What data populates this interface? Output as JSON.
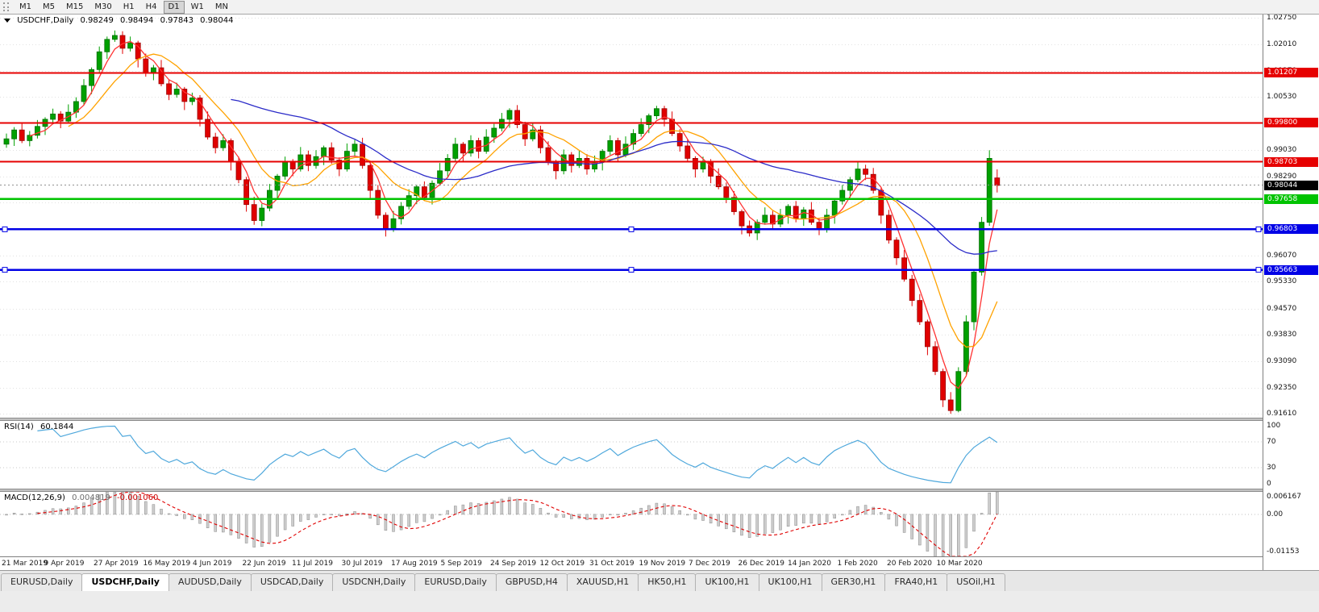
{
  "toolbar": {
    "timeframes": [
      {
        "label": "M1",
        "active": false
      },
      {
        "label": "M5",
        "active": false
      },
      {
        "label": "M15",
        "active": false
      },
      {
        "label": "M30",
        "active": false
      },
      {
        "label": "H1",
        "active": false
      },
      {
        "label": "H4",
        "active": false
      },
      {
        "label": "D1",
        "active": true
      },
      {
        "label": "W1",
        "active": false
      },
      {
        "label": "MN",
        "active": false
      }
    ]
  },
  "chart_header": {
    "symbol": "USDCHF,Daily",
    "open": "0.98249",
    "high": "0.98494",
    "low": "0.97843",
    "close": "0.98044"
  },
  "price_axis": {
    "labels": [
      "1.02750",
      "1.02010",
      "1.01270",
      "1.00530",
      "0.99800",
      "0.99030",
      "0.98290",
      "0.97550",
      "0.96810",
      "0.96070",
      "0.95330",
      "0.94570",
      "0.93830",
      "0.93090",
      "0.92350",
      "0.91610"
    ]
  },
  "hlines": [
    {
      "label": "1.01207",
      "price": 1.01207,
      "color": "#e60000",
      "width": 2,
      "selected": false
    },
    {
      "label": "0.99800",
      "price": 0.998,
      "color": "#e60000",
      "width": 2,
      "selected": false
    },
    {
      "label": "0.98703",
      "price": 0.98703,
      "color": "#e60000",
      "width": 2,
      "selected": false
    },
    {
      "label": "0.97658",
      "price": 0.97658,
      "color": "#00c300",
      "width": 2.5,
      "selected": false
    },
    {
      "label": "0.96803",
      "price": 0.96803,
      "color": "#0000e6",
      "width": 2.5,
      "selected": true
    },
    {
      "label": "0.95663",
      "price": 0.95663,
      "color": "#0000e6",
      "width": 2.5,
      "selected": true
    }
  ],
  "current_price": {
    "label": "0.98044",
    "value": 0.98044,
    "badge_color": "#000000"
  },
  "colors": {
    "up_body": "#00a000",
    "up_border": "#006e00",
    "down_body": "#e00000",
    "down_border": "#9c0000",
    "grid": "#e2e2e2",
    "macd_hist": "#cdcdcd",
    "macd_hist_border": "#8c8c8c",
    "macd_signal": "#e00000"
  },
  "chart_data": {
    "type": "candlestick",
    "symbol": "USDCHF",
    "timeframe": "Daily",
    "title": "USDCHF,Daily",
    "price_range": {
      "min": 0.915,
      "max": 1.0285
    },
    "x_labels": [
      "21 Mar 2019",
      "9 Apr 2019",
      "27 Apr 2019",
      "16 May 2019",
      "4 Jun 2019",
      "22 Jun 2019",
      "11 Jul 2019",
      "30 Jul 2019",
      "17 Aug 2019",
      "5 Sep 2019",
      "24 Sep 2019",
      "12 Oct 2019",
      "31 Oct 2019",
      "19 Nov 2019",
      "7 Dec 2019",
      "26 Dec 2019",
      "14 Jan 2020",
      "1 Feb 2020",
      "20 Feb 2020",
      "10 Mar 2020"
    ],
    "moving_averages": [
      {
        "period": 4,
        "color": "#ff3232",
        "name": "ma-fast-red"
      },
      {
        "period": 9,
        "color": "#ffa200",
        "name": "ma-mid-orange"
      },
      {
        "period": 30,
        "color": "#2b2bc8",
        "name": "ma-slow-blue"
      }
    ],
    "candles": [
      [
        0.992,
        0.995,
        0.991,
        0.9935
      ],
      [
        0.9935,
        0.9968,
        0.9915,
        0.996
      ],
      [
        0.996,
        0.9982,
        0.9923,
        0.993
      ],
      [
        0.993,
        0.9957,
        0.9914,
        0.9945
      ],
      [
        0.9945,
        0.9988,
        0.9936,
        0.997
      ],
      [
        0.997,
        0.9996,
        0.9946,
        0.999
      ],
      [
        0.999,
        1.002,
        0.998,
        1.0005
      ],
      [
        1.0005,
        1.0013,
        0.9965,
        0.9985
      ],
      [
        0.9985,
        1.0032,
        0.9978,
        1.001
      ],
      [
        1.001,
        1.0052,
        0.9994,
        1.004
      ],
      [
        1.004,
        1.0103,
        1.0031,
        1.0085
      ],
      [
        1.0085,
        1.0136,
        1.0061,
        1.013
      ],
      [
        1.013,
        1.0195,
        1.012,
        1.018
      ],
      [
        1.018,
        1.0223,
        1.016,
        1.0215
      ],
      [
        1.0215,
        1.024,
        1.0208,
        1.0226
      ],
      [
        1.0226,
        1.0238,
        1.0174,
        1.019
      ],
      [
        1.019,
        1.0223,
        1.0181,
        1.0205
      ],
      [
        1.0205,
        1.0211,
        1.0136,
        1.016
      ],
      [
        1.016,
        1.0175,
        1.011,
        1.012
      ],
      [
        1.012,
        1.0143,
        1.01,
        1.0135
      ],
      [
        1.0135,
        1.0157,
        1.0083,
        1.009
      ],
      [
        1.009,
        1.0102,
        1.0044,
        1.006
      ],
      [
        1.006,
        1.0093,
        1.0051,
        1.0075
      ],
      [
        1.0075,
        1.0081,
        1.0016,
        1.004
      ],
      [
        1.004,
        1.0065,
        1.003,
        1.005
      ],
      [
        1.005,
        1.0058,
        0.997,
        0.999
      ],
      [
        0.999,
        1.0012,
        0.9933,
        0.994
      ],
      [
        0.994,
        0.9952,
        0.9894,
        0.991
      ],
      [
        0.991,
        0.9948,
        0.9901,
        0.993
      ],
      [
        0.993,
        0.9936,
        0.9846,
        0.987
      ],
      [
        0.987,
        0.9885,
        0.981,
        0.982
      ],
      [
        0.982,
        0.9828,
        0.973,
        0.975
      ],
      [
        0.975,
        0.9772,
        0.9693,
        0.9705
      ],
      [
        0.9705,
        0.9752,
        0.9689,
        0.974
      ],
      [
        0.974,
        0.9808,
        0.9731,
        0.979
      ],
      [
        0.979,
        0.9836,
        0.9766,
        0.983
      ],
      [
        0.983,
        0.9885,
        0.982,
        0.987
      ],
      [
        0.987,
        0.9878,
        0.983,
        0.985
      ],
      [
        0.985,
        0.9912,
        0.9843,
        0.989
      ],
      [
        0.989,
        0.9902,
        0.9844,
        0.986
      ],
      [
        0.986,
        0.9903,
        0.9851,
        0.9885
      ],
      [
        0.9885,
        0.9916,
        0.9861,
        0.991
      ],
      [
        0.991,
        0.9925,
        0.9865,
        0.9875
      ],
      [
        0.9875,
        0.9883,
        0.983,
        0.985
      ],
      [
        0.985,
        0.9922,
        0.9843,
        0.99
      ],
      [
        0.99,
        0.9932,
        0.9884,
        0.992
      ],
      [
        0.992,
        0.9938,
        0.9851,
        0.986
      ],
      [
        0.986,
        0.9866,
        0.9766,
        0.979
      ],
      [
        0.979,
        0.9805,
        0.971,
        0.972
      ],
      [
        0.972,
        0.9728,
        0.966,
        0.968
      ],
      [
        0.968,
        0.9732,
        0.9673,
        0.971
      ],
      [
        0.971,
        0.9757,
        0.9694,
        0.9745
      ],
      [
        0.9745,
        0.9793,
        0.9736,
        0.9775
      ],
      [
        0.9775,
        0.9806,
        0.9751,
        0.98
      ],
      [
        0.98,
        0.9815,
        0.976,
        0.977
      ],
      [
        0.977,
        0.9818,
        0.975,
        0.981
      ],
      [
        0.981,
        0.9867,
        0.9803,
        0.9845
      ],
      [
        0.9845,
        0.9892,
        0.9829,
        0.988
      ],
      [
        0.988,
        0.9938,
        0.9871,
        0.992
      ],
      [
        0.992,
        0.9926,
        0.9871,
        0.9895
      ],
      [
        0.9895,
        0.9945,
        0.9885,
        0.993
      ],
      [
        0.993,
        0.9938,
        0.988,
        0.99
      ],
      [
        0.99,
        0.9962,
        0.9893,
        0.994
      ],
      [
        0.994,
        0.9977,
        0.9924,
        0.9965
      ],
      [
        0.9965,
        1.0008,
        0.9956,
        0.999
      ],
      [
        0.999,
        1.0021,
        0.9966,
        1.0015
      ],
      [
        1.0015,
        1.003,
        0.9965,
        0.9975
      ],
      [
        0.9975,
        0.9983,
        0.9915,
        0.9935
      ],
      [
        0.9935,
        0.9982,
        0.9928,
        0.996
      ],
      [
        0.996,
        0.9972,
        0.9894,
        0.991
      ],
      [
        0.991,
        0.9928,
        0.9861,
        0.987
      ],
      [
        0.987,
        0.9876,
        0.9821,
        0.9845
      ],
      [
        0.9845,
        0.9905,
        0.9835,
        0.989
      ],
      [
        0.989,
        0.9898,
        0.984,
        0.986
      ],
      [
        0.986,
        0.9902,
        0.9853,
        0.988
      ],
      [
        0.988,
        0.9892,
        0.9834,
        0.985
      ],
      [
        0.985,
        0.9888,
        0.9841,
        0.987
      ],
      [
        0.987,
        0.9906,
        0.9846,
        0.99
      ],
      [
        0.99,
        0.9945,
        0.989,
        0.993
      ],
      [
        0.993,
        0.9938,
        0.987,
        0.989
      ],
      [
        0.989,
        0.9942,
        0.9883,
        0.992
      ],
      [
        0.992,
        0.9962,
        0.9904,
        0.995
      ],
      [
        0.995,
        0.9993,
        0.9941,
        0.9975
      ],
      [
        0.9975,
        1.0006,
        0.9951,
        1.0
      ],
      [
        1.0,
        1.0028,
        0.999,
        1.002
      ],
      [
        1.002,
        1.0028,
        0.997,
        0.999
      ],
      [
        0.999,
        1.0012,
        0.9943,
        0.995
      ],
      [
        0.995,
        0.9962,
        0.9899,
        0.9915
      ],
      [
        0.9915,
        0.9933,
        0.9871,
        0.988
      ],
      [
        0.988,
        0.9886,
        0.9826,
        0.985
      ],
      [
        0.985,
        0.9885,
        0.984,
        0.987
      ],
      [
        0.987,
        0.9878,
        0.981,
        0.983
      ],
      [
        0.983,
        0.9852,
        0.9793,
        0.98
      ],
      [
        0.98,
        0.9812,
        0.9754,
        0.977
      ],
      [
        0.977,
        0.9788,
        0.9721,
        0.973
      ],
      [
        0.973,
        0.9736,
        0.9666,
        0.969
      ],
      [
        0.969,
        0.9705,
        0.966,
        0.967
      ],
      [
        0.967,
        0.9708,
        0.965,
        0.97
      ],
      [
        0.97,
        0.9742,
        0.9693,
        0.972
      ],
      [
        0.972,
        0.9732,
        0.9679,
        0.9695
      ],
      [
        0.9695,
        0.9738,
        0.9686,
        0.972
      ],
      [
        0.972,
        0.9751,
        0.9696,
        0.9745
      ],
      [
        0.9745,
        0.976,
        0.97,
        0.971
      ],
      [
        0.971,
        0.9743,
        0.969,
        0.9735
      ],
      [
        0.9735,
        0.9757,
        0.9693,
        0.97
      ],
      [
        0.97,
        0.9712,
        0.9664,
        0.968
      ],
      [
        0.968,
        0.9738,
        0.9671,
        0.972
      ],
      [
        0.972,
        0.9766,
        0.9696,
        0.976
      ],
      [
        0.976,
        0.9805,
        0.975,
        0.979
      ],
      [
        0.979,
        0.9828,
        0.977,
        0.982
      ],
      [
        0.982,
        0.9872,
        0.9813,
        0.985
      ],
      [
        0.985,
        0.9862,
        0.9819,
        0.9835
      ],
      [
        0.9835,
        0.9853,
        0.9781,
        0.979
      ],
      [
        0.979,
        0.9796,
        0.9696,
        0.972
      ],
      [
        0.972,
        0.9735,
        0.964,
        0.965
      ],
      [
        0.965,
        0.9658,
        0.958,
        0.96
      ],
      [
        0.96,
        0.9622,
        0.9533,
        0.954
      ],
      [
        0.954,
        0.9552,
        0.9464,
        0.948
      ],
      [
        0.948,
        0.9498,
        0.9411,
        0.942
      ],
      [
        0.942,
        0.9426,
        0.9326,
        0.935
      ],
      [
        0.935,
        0.9365,
        0.927,
        0.928
      ],
      [
        0.928,
        0.9288,
        0.918,
        0.92
      ],
      [
        0.92,
        0.9222,
        0.9161,
        0.917
      ],
      [
        0.917,
        0.9292,
        0.9165,
        0.928
      ],
      [
        0.928,
        0.9438,
        0.9271,
        0.942
      ],
      [
        0.942,
        0.9566,
        0.9396,
        0.956
      ],
      [
        0.956,
        0.9715,
        0.955,
        0.97
      ],
      [
        0.97,
        0.9903,
        0.969,
        0.988
      ],
      [
        0.9825,
        0.9849,
        0.9784,
        0.9804
      ]
    ],
    "indicators": {
      "rsi": {
        "label": "RSI(14)",
        "value": "60.1844",
        "compute_period": 7,
        "levels": [
          70,
          30
        ],
        "axis_labels": [
          {
            "text": "100",
            "value": 100
          },
          {
            "text": "70",
            "value": 70
          },
          {
            "text": "30",
            "value": 30
          },
          {
            "text": "0",
            "value": 0
          }
        ],
        "range": [
          0,
          100
        ],
        "color": "#4fa8dc"
      },
      "macd": {
        "label": "MACD(12,26,9)",
        "value_main": "0.004819",
        "value_signal": "-0.001060",
        "compute": {
          "fast": 6,
          "slow": 13,
          "signal": 5
        },
        "axis_labels": [
          {
            "text": "0.006167",
            "value": 0.006167
          },
          {
            "text": "0.00",
            "value": 0
          },
          {
            "text": "-0.01153",
            "value": -0.01153
          }
        ],
        "range": [
          -0.01153,
          0.006167
        ]
      }
    }
  },
  "bottom_tabs": [
    {
      "label": "EURUSD,Daily",
      "active": false
    },
    {
      "label": "USDCHF,Daily",
      "active": true
    },
    {
      "label": "AUDUSD,Daily",
      "active": false
    },
    {
      "label": "USDCAD,Daily",
      "active": false
    },
    {
      "label": "USDCNH,Daily",
      "active": false
    },
    {
      "label": "EURUSD,Daily",
      "active": false
    },
    {
      "label": "GBPUSD,H4",
      "active": false
    },
    {
      "label": "XAUUSD,H1",
      "active": false
    },
    {
      "label": "HK50,H1",
      "active": false
    },
    {
      "label": "UK100,H1",
      "active": false
    },
    {
      "label": "UK100,H1",
      "active": false
    },
    {
      "label": "GER30,H1",
      "active": false
    },
    {
      "label": "FRA40,H1",
      "active": false
    },
    {
      "label": "USOil,H1",
      "active": false
    }
  ]
}
